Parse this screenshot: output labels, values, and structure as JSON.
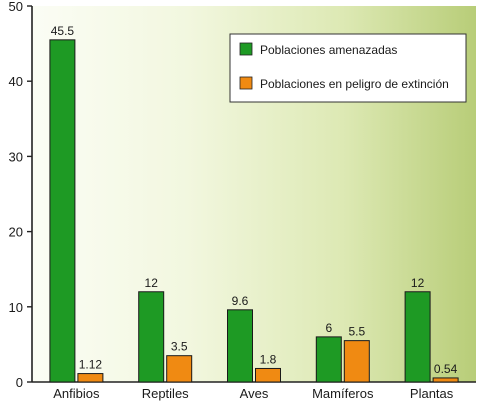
{
  "chart_data": {
    "type": "bar",
    "categories": [
      "Anfibios",
      "Reptiles",
      "Aves",
      "Mamíferos",
      "Plantas"
    ],
    "series": [
      {
        "name": "Poblaciones amenazadas",
        "values": [
          45.5,
          12,
          9.6,
          6,
          12
        ],
        "labels": [
          "45.5",
          "12",
          "9.6",
          "6",
          "12"
        ],
        "color": "#1e9a24"
      },
      {
        "name": "Poblaciones en peligro de extinción",
        "values": [
          1.12,
          3.5,
          1.8,
          5.5,
          0.54
        ],
        "labels": [
          "1.12",
          "3.5",
          "1.8",
          "5.5",
          "0.54"
        ],
        "color": "#f08a12"
      }
    ],
    "ylim": [
      0,
      50
    ],
    "yticks": [
      0,
      10,
      20,
      30,
      40,
      50
    ],
    "ytick_labels": [
      "0",
      "10",
      "20",
      "30",
      "40",
      "50"
    ],
    "grid": false,
    "legend_position": "top-right",
    "background": "gradient white-to-olive green"
  }
}
